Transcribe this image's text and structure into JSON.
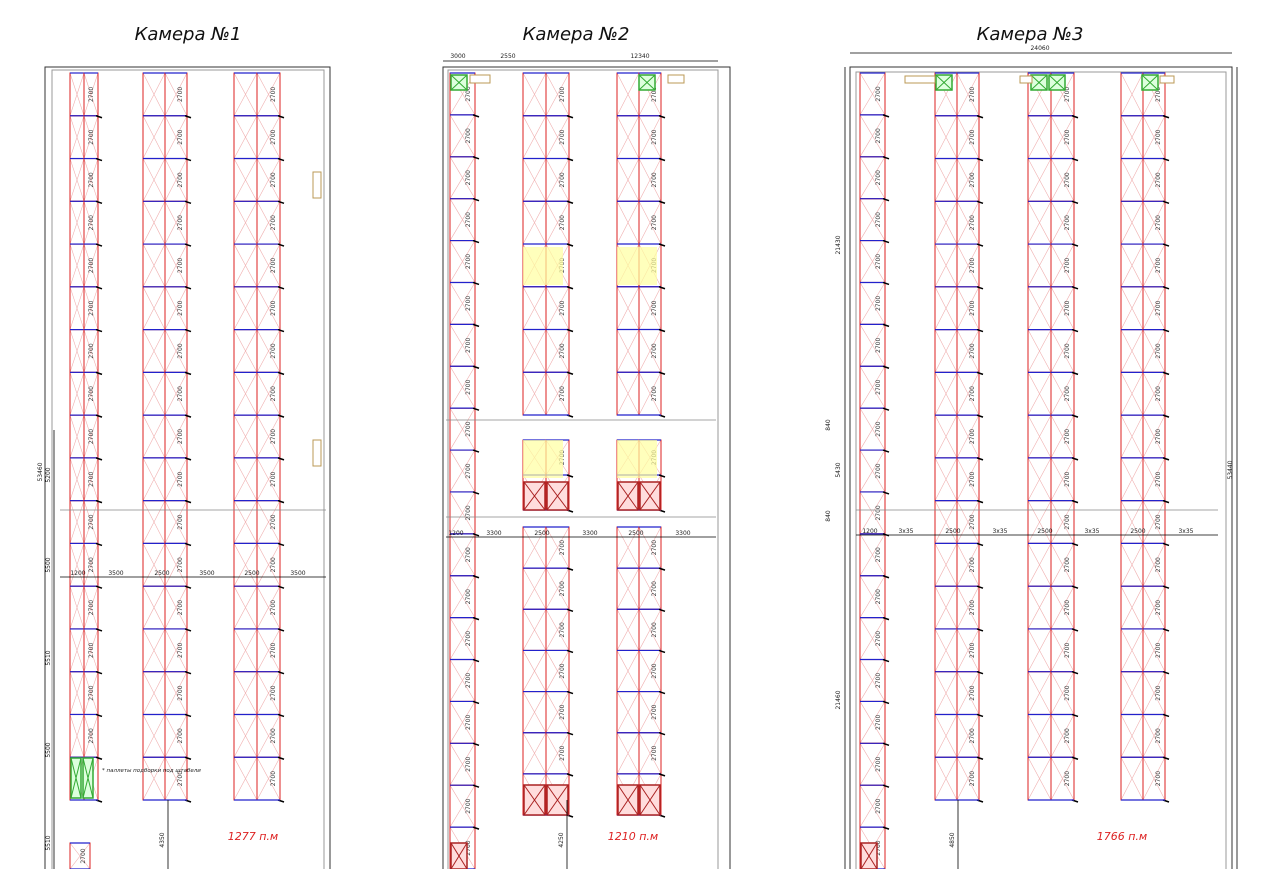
{
  "cameras": [
    {
      "title": "Камера №1",
      "total": "1277 п.м",
      "cell_label": "2700",
      "dimensions": [
        "1200",
        "3500",
        "2500",
        "3500",
        "2500",
        "3500"
      ],
      "side_dims": [
        "53460",
        "5200",
        "5500",
        "5510",
        "5500",
        "5510"
      ],
      "note": "* паллеты подборки под штабели",
      "bottom_dim": "4350"
    },
    {
      "title": "Камера №2",
      "total": "1210 п.м",
      "cell_label": "2700",
      "top_dims": [
        "3000",
        "2550",
        "12340"
      ],
      "dimensions": [
        "1200",
        "3300",
        "2500",
        "3300",
        "2500",
        "3300"
      ],
      "bottom_dim": "4250"
    },
    {
      "title": "Камера №3",
      "total": "1766 п.м",
      "cell_label": "2700",
      "top_dims": [
        "24060"
      ],
      "dimensions": [
        "1200",
        "3x35",
        "2500",
        "3x35",
        "2500",
        "3x35",
        "2500",
        "3x35"
      ],
      "side_dims": [
        "21430",
        "840",
        "5430",
        "840",
        "21460"
      ],
      "right_dim": "53440",
      "bottom_dim": "4850"
    }
  ]
}
